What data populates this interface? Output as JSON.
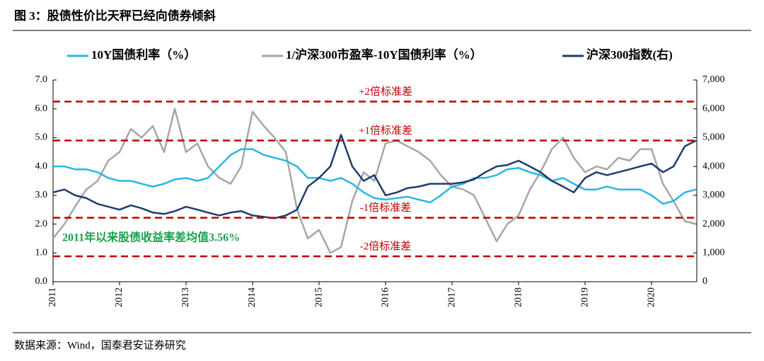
{
  "chart_data": {
    "type": "line",
    "title": "图 3：股债性价比天秤已经向债券倾斜",
    "source": "数据来源：Wind，国泰君安证券研究",
    "annotation": "2011年以来股债收益率差均值3.56%",
    "x": [
      2011,
      2011.17,
      2011.33,
      2011.5,
      2011.67,
      2011.83,
      2012,
      2012.17,
      2012.33,
      2012.5,
      2012.67,
      2012.83,
      2013,
      2013.17,
      2013.33,
      2013.5,
      2013.67,
      2013.83,
      2014,
      2014.17,
      2014.33,
      2014.5,
      2014.67,
      2014.83,
      2015,
      2015.17,
      2015.33,
      2015.5,
      2015.67,
      2015.83,
      2016,
      2016.17,
      2016.33,
      2016.5,
      2016.67,
      2016.83,
      2017,
      2017.17,
      2017.33,
      2017.5,
      2017.67,
      2017.83,
      2018,
      2018.17,
      2018.33,
      2018.5,
      2018.67,
      2018.83,
      2019,
      2019.17,
      2019.33,
      2019.5,
      2019.67,
      2019.83,
      2020,
      2020.17,
      2020.33,
      2020.5,
      2020.67
    ],
    "xlim": [
      2011,
      2020.68
    ],
    "xticks": [
      2011,
      2012,
      2013,
      2014,
      2015,
      2016,
      2017,
      2018,
      2019,
      2020
    ],
    "ylim": [
      0,
      7
    ],
    "yticks": [
      {
        "value": 0,
        "label": "0.0"
      },
      {
        "value": 1,
        "label": "1.0"
      },
      {
        "value": 2,
        "label": "2.0"
      },
      {
        "value": 3,
        "label": "3.0"
      },
      {
        "value": 4,
        "label": "4.0"
      },
      {
        "value": 5,
        "label": "5.0"
      },
      {
        "value": 6,
        "label": "6.0"
      },
      {
        "value": 7,
        "label": "7.0"
      }
    ],
    "y2lim": [
      0,
      7000
    ],
    "y2ticks": [
      0,
      {
        "value": 1000,
        "label": "1,000"
      },
      {
        "value": 2000,
        "label": "2,000"
      },
      {
        "value": 3000,
        "label": "3,000"
      },
      {
        "value": 4000,
        "label": "4,000"
      },
      {
        "value": 5000,
        "label": "5,000"
      },
      {
        "value": 6000,
        "label": "6,000"
      },
      {
        "value": 7000,
        "label": "7,000"
      }
    ],
    "reference_lines": [
      {
        "value": 6.25,
        "label": "+2倍标准差"
      },
      {
        "value": 4.9,
        "label": "+1倍标准差"
      },
      {
        "value": 2.22,
        "label": "-1倍标准差"
      },
      {
        "value": 0.88,
        "label": "-2倍标准差"
      }
    ],
    "reference_color": "#c00000",
    "annotation_color": "#19a04a",
    "series": [
      {
        "name": "10Y国债利率（%）",
        "color": "#29b6e6",
        "values": [
          4.0,
          4.0,
          3.9,
          3.9,
          3.8,
          3.6,
          3.5,
          3.5,
          3.4,
          3.3,
          3.4,
          3.55,
          3.6,
          3.5,
          3.6,
          4.0,
          4.4,
          4.6,
          4.6,
          4.4,
          4.3,
          4.2,
          4.0,
          3.6,
          3.6,
          3.5,
          3.6,
          3.4,
          3.1,
          2.9,
          2.85,
          2.9,
          2.95,
          2.85,
          2.75,
          3.0,
          3.3,
          3.4,
          3.6,
          3.6,
          3.7,
          3.9,
          3.95,
          3.8,
          3.7,
          3.5,
          3.6,
          3.4,
          3.2,
          3.2,
          3.3,
          3.2,
          3.2,
          3.2,
          3.0,
          2.7,
          2.8,
          3.1,
          3.2
        ]
      },
      {
        "name": "1/沪深300市盈率-10Y国债利率（%）",
        "color": "#a6a6a6",
        "values": [
          1.5,
          2.0,
          2.6,
          3.2,
          3.5,
          4.2,
          4.5,
          5.3,
          5.0,
          5.4,
          4.5,
          6.0,
          4.5,
          4.8,
          4.0,
          3.6,
          3.4,
          4.0,
          5.9,
          5.4,
          5.0,
          4.5,
          2.5,
          1.5,
          1.8,
          1.0,
          1.2,
          2.8,
          3.8,
          3.5,
          4.8,
          4.9,
          4.7,
          4.5,
          4.2,
          3.7,
          3.3,
          3.2,
          3.0,
          2.2,
          1.4,
          2.0,
          2.3,
          3.2,
          3.8,
          4.6,
          5.0,
          4.3,
          3.8,
          4.0,
          3.9,
          4.3,
          4.2,
          4.6,
          4.6,
          3.4,
          2.8,
          2.1,
          2.0
        ]
      },
      {
        "name": "沪深300指数(右)",
        "color": "#1f3c6e",
        "axis": "y2",
        "values": [
          3100,
          3200,
          3000,
          2900,
          2700,
          2600,
          2500,
          2650,
          2550,
          2400,
          2350,
          2450,
          2600,
          2500,
          2400,
          2300,
          2400,
          2450,
          2300,
          2250,
          2200,
          2300,
          2500,
          3300,
          3600,
          4000,
          5100,
          4000,
          3500,
          3700,
          3000,
          3100,
          3250,
          3300,
          3400,
          3400,
          3400,
          3450,
          3550,
          3800,
          4000,
          4050,
          4200,
          4000,
          3800,
          3500,
          3300,
          3100,
          3600,
          3800,
          3700,
          3800,
          3900,
          4000,
          4100,
          3800,
          4000,
          4700,
          4900
        ]
      }
    ]
  }
}
